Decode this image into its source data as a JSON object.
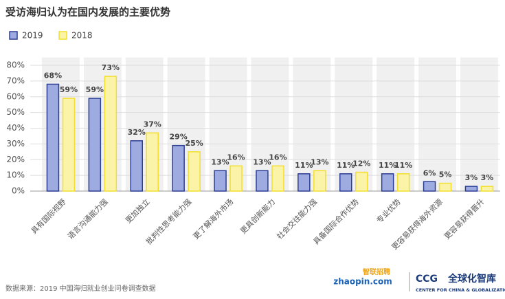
{
  "chart_data": {
    "type": "bar",
    "title": "受访海归认为在国内发展的主要优势",
    "categories": [
      "具有国际视野",
      "语言沟通能力强",
      "更加独立",
      "批判性思考能力强",
      "更了解海外市场",
      "更具创新能力",
      "社会交往能力强",
      "具备国际合作优势",
      "专业优势",
      "更容易获得海外资源",
      "更容易获得晋升"
    ],
    "series": [
      {
        "name": "2019",
        "color": "#9dabe0",
        "stroke": "#2c3e94",
        "values": [
          68,
          59,
          32,
          29,
          13,
          13,
          11,
          11,
          11,
          6,
          3
        ],
        "value_labels": [
          "68%",
          "59%",
          "32%",
          "29%",
          "13%",
          "13%",
          "11%",
          "11%",
          "11%",
          "6%",
          "3%"
        ]
      },
      {
        "name": "2018",
        "color": "#fbf3a8",
        "stroke": "#f3df2e",
        "values": [
          59,
          73,
          37,
          25,
          16,
          16,
          13,
          12,
          11,
          5,
          3
        ],
        "value_labels": [
          "59%",
          "73%",
          "37%",
          "25%",
          "16%",
          "16%",
          "13%",
          "12%",
          "11%",
          "5%",
          "3%"
        ]
      }
    ],
    "ylim": [
      0,
      85
    ],
    "yticks": [
      {
        "value": 0,
        "label": "0%"
      },
      {
        "value": 10,
        "label": "10%"
      },
      {
        "value": 20,
        "label": "20%"
      },
      {
        "value": 30,
        "label": "30%"
      },
      {
        "value": 40,
        "label": "40%"
      },
      {
        "value": 50,
        "label": "50%"
      },
      {
        "value": 60,
        "label": "60%"
      },
      {
        "value": 70,
        "label": "70%"
      },
      {
        "value": 80,
        "label": "80%"
      }
    ],
    "grid": true,
    "band_background": "#f0f0f0",
    "source": "数据来源：2019 中国海归就业创业问卷调查数据"
  },
  "logos": {
    "zhaopin_cn": "智联招聘",
    "zhaopin_en": "zhaopin.com",
    "ccg": "CCG",
    "ccg_cn": "全球化智库",
    "ccg_en": "CENTER FOR CHINA & GLOBALIZATION"
  }
}
